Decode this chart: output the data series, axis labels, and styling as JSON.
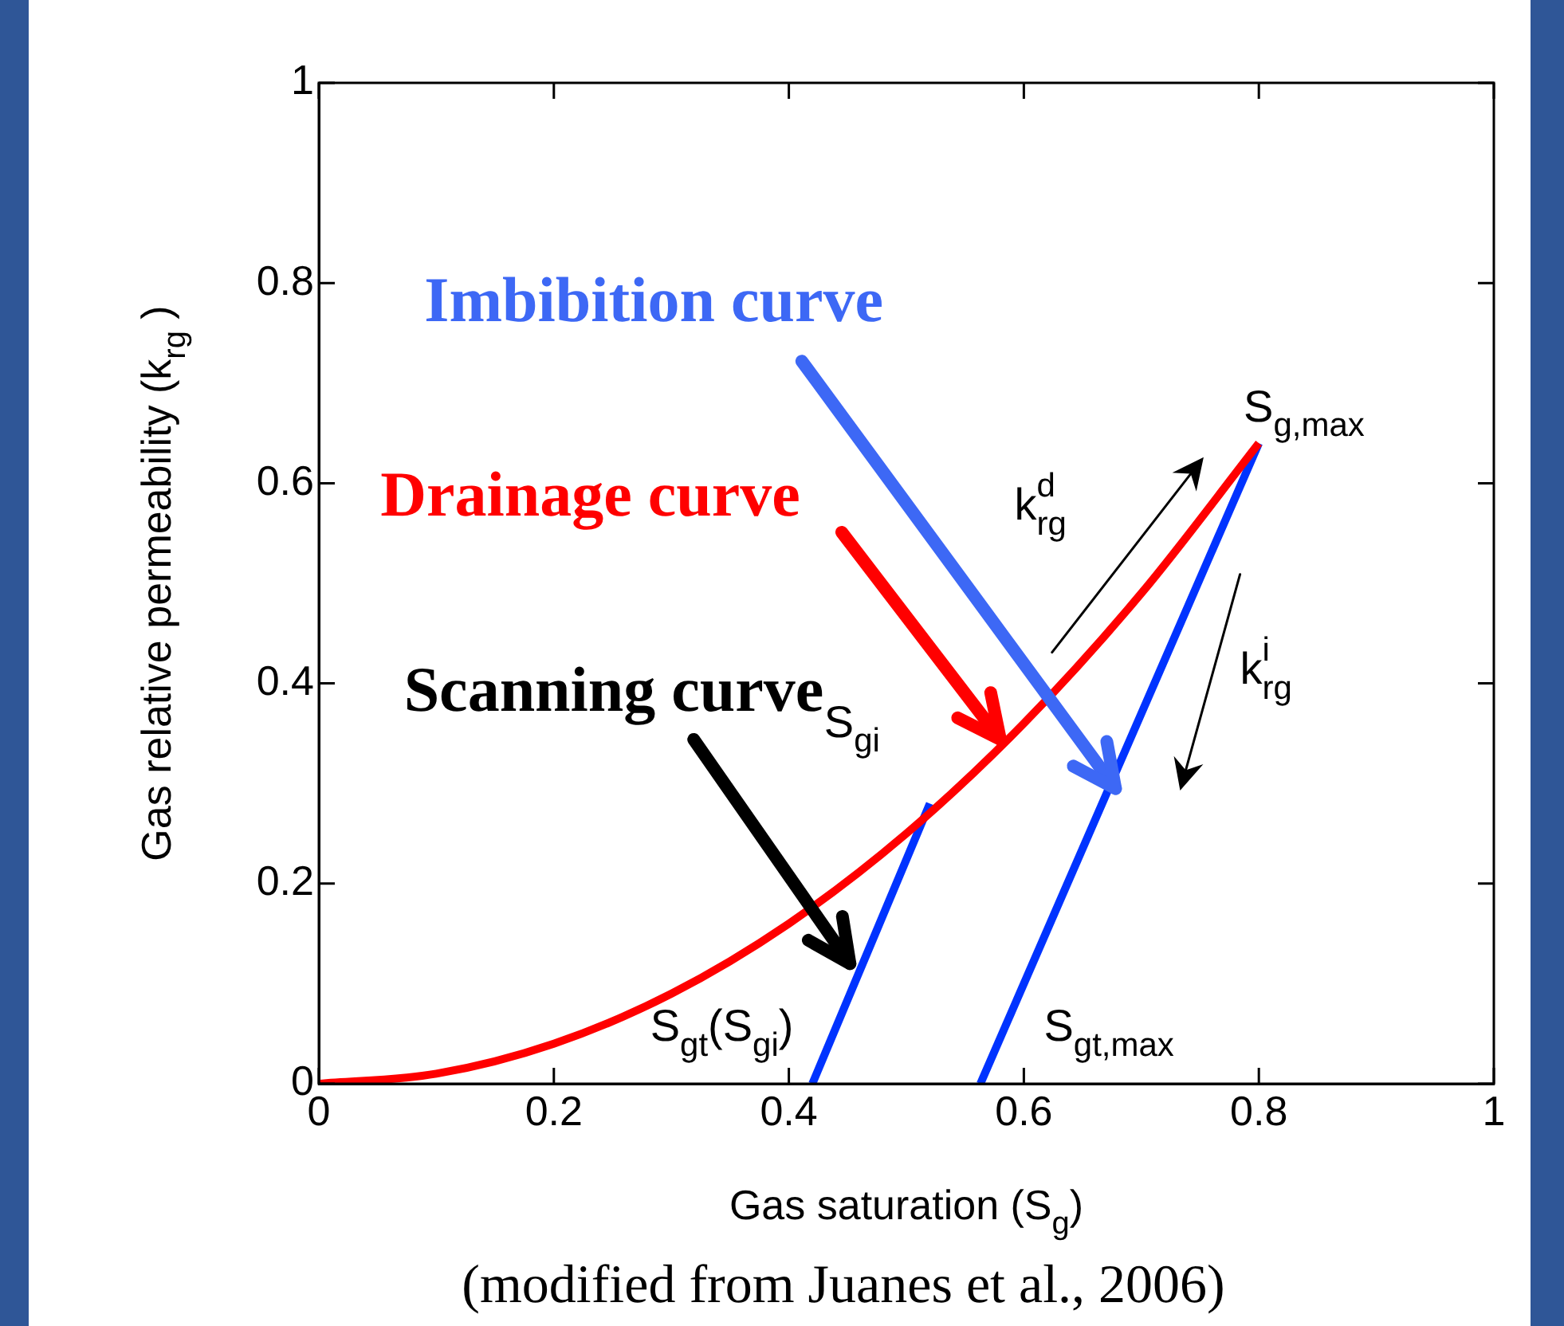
{
  "chart_data": {
    "type": "line",
    "xlabel": "Gas saturation (S$_{g}$)",
    "ylabel": "Gas relative permeability (k$_{rg}$ )",
    "series": [
      {
        "color": "#ff0000",
        "x": [
          0,
          0.1,
          0.2,
          0.3,
          0.4,
          0.5,
          0.6,
          0.7,
          0.8
        ],
        "values": [
          0,
          0.01,
          0.04,
          0.09,
          0.16,
          0.25,
          0.36,
          0.49,
          0.64
        ]
      },
      {
        "color": "#0033ff",
        "x": [
          0.42,
          0.52
        ],
        "values": [
          0,
          0.28
        ]
      },
      {
        "color": "#0033ff",
        "x": [
          0.563,
          0.8
        ],
        "values": [
          0,
          0.64
        ]
      }
    ],
    "xlim": [
      0,
      1
    ],
    "ylim": [
      0,
      1
    ],
    "xticks": [
      0,
      0.2,
      0.4,
      0.6,
      0.8,
      1
    ],
    "yticks": [
      0,
      0.2,
      0.4,
      0.6,
      0.8,
      1
    ],
    "grid": false,
    "legend": false,
    "marker": "none",
    "line_style": "solid",
    "annotations": [
      {
        "text": "Imbibition curve",
        "x": 0.678,
        "y": 0.295
      },
      {
        "text": "Drainage curve",
        "x": 0.58,
        "y": 0.344
      },
      {
        "text": "Scanning curve",
        "x": 0.452,
        "y": 0.12
      },
      {
        "text": "S$_{g,max}$",
        "x": 0.8,
        "y": 0.64
      },
      "k$^{d}$$_{rg}$",
      "k$^{i}$$_{rg}$",
      {
        "text": "S$_{gi}$",
        "x": 0.52,
        "y": 0.28
      },
      {
        "text": "S$_{gt}$(S$_{gi}$)",
        "x": 0.42,
        "y": 0
      },
      {
        "text": "S$_{gt,max}$",
        "x": 0.563,
        "y": 0
      },
      "(modified from Juanes et al., 2006)"
    ]
  }
}
